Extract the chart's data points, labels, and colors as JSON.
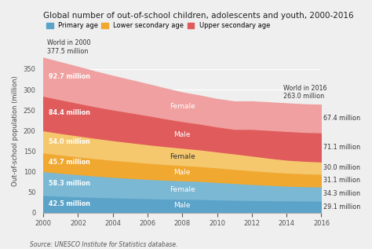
{
  "title": "Global number of out-of-school children, adolescents and youth, 2000-2016",
  "ylabel": "Out-of-school population (million)",
  "source": "Source: UNESCO Institute for Statistics database.",
  "years": [
    2000,
    2001,
    2002,
    2003,
    2004,
    2005,
    2006,
    2007,
    2008,
    2009,
    2010,
    2011,
    2012,
    2013,
    2014,
    2015,
    2016
  ],
  "primary_male": [
    42.5,
    41.0,
    39.5,
    38.0,
    37.0,
    36.0,
    35.0,
    34.0,
    33.5,
    33.0,
    32.0,
    31.0,
    30.5,
    30.0,
    29.5,
    29.2,
    29.1
  ],
  "primary_female": [
    58.3,
    56.0,
    54.0,
    52.0,
    50.0,
    48.5,
    47.0,
    46.0,
    45.0,
    44.0,
    42.5,
    41.0,
    39.0,
    37.5,
    36.0,
    35.0,
    34.3
  ],
  "lower_sec_male": [
    45.7,
    44.5,
    43.5,
    42.5,
    41.5,
    40.5,
    39.5,
    38.5,
    37.5,
    36.5,
    35.5,
    34.5,
    33.5,
    32.5,
    32.0,
    31.5,
    31.1
  ],
  "lower_sec_female": [
    54.0,
    52.5,
    51.0,
    49.5,
    48.0,
    46.5,
    45.0,
    43.5,
    42.0,
    40.5,
    39.0,
    37.5,
    36.0,
    33.5,
    31.5,
    30.5,
    30.0
  ],
  "upper_sec_male": [
    84.4,
    82.0,
    79.5,
    77.0,
    75.0,
    73.0,
    71.0,
    68.0,
    65.0,
    63.0,
    61.0,
    60.0,
    65.0,
    68.0,
    70.0,
    70.5,
    71.1
  ],
  "upper_sec_female": [
    92.7,
    90.5,
    88.0,
    85.0,
    82.0,
    79.0,
    76.0,
    73.0,
    70.0,
    68.5,
    67.0,
    67.0,
    67.2,
    67.3,
    67.4,
    67.4,
    67.4
  ],
  "color_primary_male": "#5ba3c9",
  "color_primary_female": "#7ab8d4",
  "color_lower_male": "#f0a830",
  "color_lower_female": "#f5c86e",
  "color_upper_male": "#e05c5c",
  "color_upper_female": "#f0a0a0",
  "world_2000": "World in 2000\n377.5 million",
  "world_2016": "World in 2016\n263.0 million",
  "background_color": "#efefef",
  "legend_colors": [
    "#5ba3c9",
    "#f0a830",
    "#e05c5c"
  ],
  "legend_labels": [
    "Primary age",
    "Lower secondary age",
    "Upper secondary age"
  ]
}
